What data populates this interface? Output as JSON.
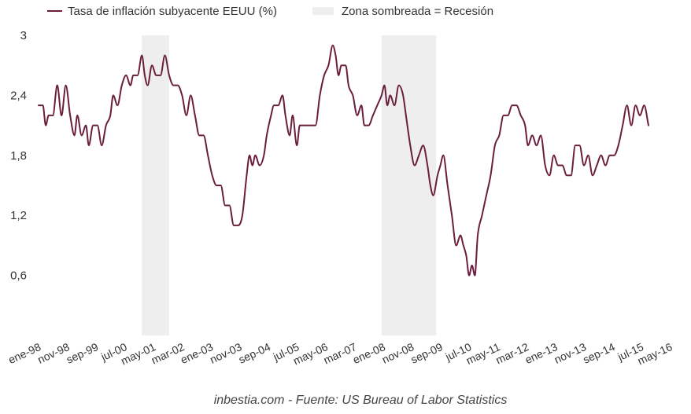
{
  "chart_data": {
    "type": "line",
    "title": "",
    "xlabel": "",
    "ylabel": "",
    "colors": {
      "line": "#6b1e3c",
      "recession": "#eeeeee"
    },
    "legend": {
      "series_label": "Tasa de inflación subyacente EEUU (%)",
      "shade_label": "Zona sombreada = Recesión"
    },
    "ylim": [
      0,
      3
    ],
    "yticks": [
      "0,6",
      "1,2",
      "1,8",
      "2,4",
      "3"
    ],
    "ytick_values": [
      0.6,
      1.2,
      1.8,
      2.4,
      3.0
    ],
    "xlim": [
      0,
      224
    ],
    "xticks": [
      {
        "label": "ene-98",
        "i": 0
      },
      {
        "label": "nov-98",
        "i": 10
      },
      {
        "label": "sep-99",
        "i": 20
      },
      {
        "label": "jul-00",
        "i": 30
      },
      {
        "label": "may-01",
        "i": 40
      },
      {
        "label": "mar-02",
        "i": 50
      },
      {
        "label": "ene-03",
        "i": 60
      },
      {
        "label": "nov-03",
        "i": 70
      },
      {
        "label": "sep-04",
        "i": 80
      },
      {
        "label": "jul-05",
        "i": 90
      },
      {
        "label": "may-06",
        "i": 100
      },
      {
        "label": "mar-07",
        "i": 110
      },
      {
        "label": "ene-08",
        "i": 120
      },
      {
        "label": "nov-08",
        "i": 130
      },
      {
        "label": "sep-09",
        "i": 140
      },
      {
        "label": "jul-10",
        "i": 150
      },
      {
        "label": "may-11",
        "i": 160
      },
      {
        "label": "mar-12",
        "i": 170
      },
      {
        "label": "ene-13",
        "i": 180
      },
      {
        "label": "nov-13",
        "i": 190
      },
      {
        "label": "sep-14",
        "i": 200
      },
      {
        "label": "jul-15",
        "i": 210
      },
      {
        "label": "may-16",
        "i": 220
      }
    ],
    "recessions": [
      [
        36,
        45.5
      ],
      [
        119.5,
        138.5
      ]
    ],
    "series": [
      {
        "name": "Tasa de inflación subyacente EEUU (%)",
        "points": [
          [
            0,
            2.3
          ],
          [
            1.5,
            2.3
          ],
          [
            2.5,
            2.1
          ],
          [
            3.5,
            2.2
          ],
          [
            5,
            2.2
          ],
          [
            6.5,
            2.5
          ],
          [
            8,
            2.2
          ],
          [
            9.5,
            2.5
          ],
          [
            11,
            2.2
          ],
          [
            12.5,
            2.0
          ],
          [
            13.5,
            2.2
          ],
          [
            15,
            2.0
          ],
          [
            16.5,
            2.1
          ],
          [
            17.5,
            1.9
          ],
          [
            19,
            2.1
          ],
          [
            20.5,
            2.1
          ],
          [
            22,
            1.9
          ],
          [
            23.5,
            2.1
          ],
          [
            25,
            2.2
          ],
          [
            26,
            2.4
          ],
          [
            27.5,
            2.3
          ],
          [
            29,
            2.5
          ],
          [
            30.5,
            2.6
          ],
          [
            32,
            2.5
          ],
          [
            33,
            2.6
          ],
          [
            34.5,
            2.6
          ],
          [
            36,
            2.8
          ],
          [
            37,
            2.6
          ],
          [
            38,
            2.5
          ],
          [
            39.5,
            2.7
          ],
          [
            41,
            2.6
          ],
          [
            42.5,
            2.6
          ],
          [
            44,
            2.8
          ],
          [
            45.5,
            2.6
          ],
          [
            47,
            2.5
          ],
          [
            48.5,
            2.5
          ],
          [
            50,
            2.4
          ],
          [
            51.5,
            2.2
          ],
          [
            53,
            2.4
          ],
          [
            54.5,
            2.2
          ],
          [
            56,
            2.0
          ],
          [
            57.5,
            2.0
          ],
          [
            59,
            1.8
          ],
          [
            60.5,
            1.6
          ],
          [
            62,
            1.5
          ],
          [
            63.5,
            1.5
          ],
          [
            65,
            1.3
          ],
          [
            66.5,
            1.3
          ],
          [
            68,
            1.1
          ],
          [
            69.5,
            1.1
          ],
          [
            71,
            1.2
          ],
          [
            72.5,
            1.6
          ],
          [
            73.5,
            1.8
          ],
          [
            74.5,
            1.7
          ],
          [
            75.5,
            1.8
          ],
          [
            77,
            1.7
          ],
          [
            78.5,
            1.8
          ],
          [
            79.5,
            2.0
          ],
          [
            81,
            2.2
          ],
          [
            82,
            2.3
          ],
          [
            83.5,
            2.3
          ],
          [
            85,
            2.4
          ],
          [
            86,
            2.2
          ],
          [
            87.5,
            2.0
          ],
          [
            88.5,
            2.2
          ],
          [
            90,
            1.9
          ],
          [
            91,
            2.1
          ],
          [
            92.5,
            2.1
          ],
          [
            94,
            2.1
          ],
          [
            95,
            2.1
          ],
          [
            96.5,
            2.1
          ],
          [
            98,
            2.4
          ],
          [
            99.5,
            2.6
          ],
          [
            101,
            2.7
          ],
          [
            102.5,
            2.9
          ],
          [
            103.5,
            2.8
          ],
          [
            104.5,
            2.6
          ],
          [
            105.5,
            2.7
          ],
          [
            107,
            2.7
          ],
          [
            108,
            2.5
          ],
          [
            109.5,
            2.4
          ],
          [
            111,
            2.2
          ],
          [
            112.5,
            2.3
          ],
          [
            113.5,
            2.1
          ],
          [
            115,
            2.1
          ],
          [
            116.5,
            2.2
          ],
          [
            118,
            2.3
          ],
          [
            119.5,
            2.4
          ],
          [
            120.5,
            2.5
          ],
          [
            121.5,
            2.3
          ],
          [
            122.5,
            2.4
          ],
          [
            124,
            2.3
          ],
          [
            125.5,
            2.5
          ],
          [
            127,
            2.4
          ],
          [
            128,
            2.2
          ],
          [
            129.5,
            1.9
          ],
          [
            131,
            1.7
          ],
          [
            132.5,
            1.8
          ],
          [
            134,
            1.9
          ],
          [
            135.5,
            1.7
          ],
          [
            136.5,
            1.5
          ],
          [
            137.5,
            1.4
          ],
          [
            139,
            1.6
          ],
          [
            140,
            1.7
          ],
          [
            141,
            1.8
          ],
          [
            142.5,
            1.5
          ],
          [
            144,
            1.2
          ],
          [
            145.5,
            0.9
          ],
          [
            147,
            1.0
          ],
          [
            148,
            0.9
          ],
          [
            149,
            0.8
          ],
          [
            150,
            0.6
          ],
          [
            151,
            0.7
          ],
          [
            152,
            0.6
          ],
          [
            153,
            1.0
          ],
          [
            154.5,
            1.2
          ],
          [
            156,
            1.4
          ],
          [
            157.5,
            1.6
          ],
          [
            159,
            1.9
          ],
          [
            160.5,
            2.0
          ],
          [
            162,
            2.2
          ],
          [
            163.5,
            2.2
          ],
          [
            165,
            2.3
          ],
          [
            166.5,
            2.3
          ],
          [
            168,
            2.2
          ],
          [
            169.5,
            2.1
          ],
          [
            170.5,
            1.9
          ],
          [
            172,
            2.0
          ],
          [
            173.5,
            1.9
          ],
          [
            175,
            2.0
          ],
          [
            176.5,
            1.7
          ],
          [
            178,
            1.6
          ],
          [
            179.5,
            1.8
          ],
          [
            181,
            1.7
          ],
          [
            182.5,
            1.7
          ],
          [
            184,
            1.6
          ],
          [
            185.5,
            1.6
          ],
          [
            187,
            1.9
          ],
          [
            188.5,
            1.9
          ],
          [
            190,
            1.7
          ],
          [
            191.5,
            1.8
          ],
          [
            193,
            1.6
          ],
          [
            194.5,
            1.7
          ],
          [
            196,
            1.8
          ],
          [
            197.5,
            1.7
          ],
          [
            199,
            1.8
          ],
          [
            200.5,
            1.8
          ],
          [
            202,
            1.9
          ],
          [
            203.5,
            2.1
          ],
          [
            205,
            2.3
          ],
          [
            206.5,
            2.1
          ],
          [
            208,
            2.3
          ],
          [
            209.5,
            2.2
          ],
          [
            211,
            2.3
          ],
          [
            212.5,
            2.1
          ]
        ]
      }
    ]
  },
  "footer": {
    "source": "inbestia.com - Fuente: US Bureau of Labor Statistics"
  }
}
